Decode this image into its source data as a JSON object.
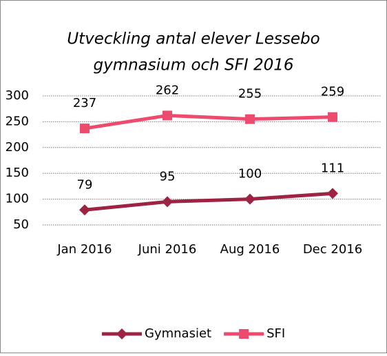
{
  "chart_data": {
    "type": "line",
    "title": [
      "Utveckling antal elever Lessebo",
      "gymnasium och SFI 2016"
    ],
    "categories": [
      "Jan 2016",
      "Juni 2016",
      "Aug 2016",
      "Dec 2016"
    ],
    "series": [
      {
        "name": "Gymnasiet",
        "color": "#9e2242",
        "marker": "diamond",
        "values": [
          79,
          95,
          100,
          111
        ]
      },
      {
        "name": "SFI",
        "color": "#ec4b6e",
        "marker": "square",
        "values": [
          237,
          262,
          255,
          259
        ]
      }
    ],
    "ylim": [
      50,
      300
    ],
    "yticks": [
      50,
      100,
      150,
      200,
      250,
      300
    ],
    "grid": true,
    "legend": "bottom"
  }
}
